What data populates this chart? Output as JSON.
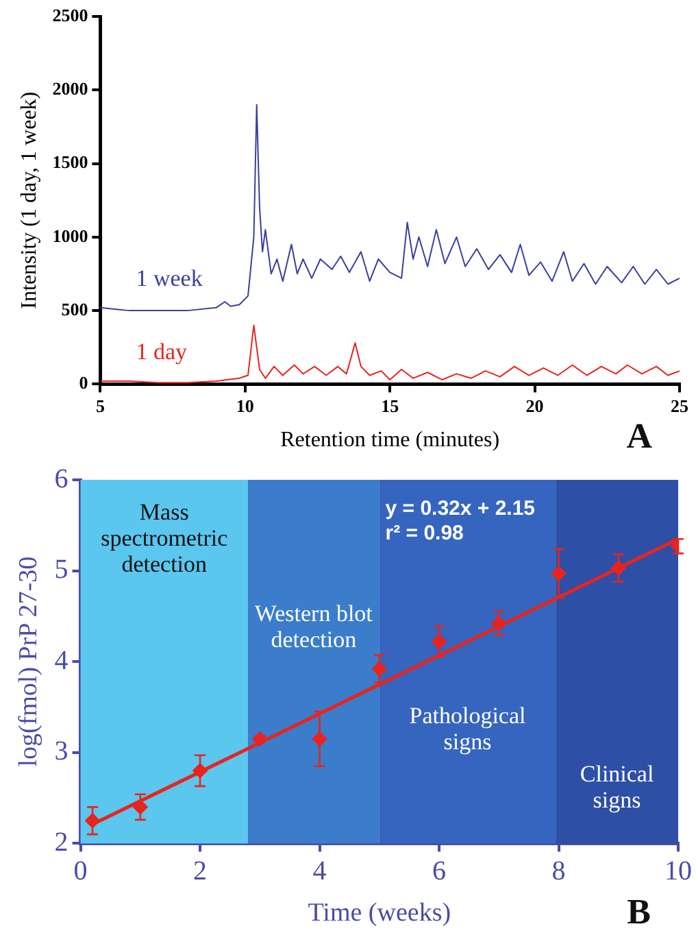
{
  "chart_data": [
    {
      "type": "line",
      "xlabel": "Retention time (minutes)",
      "ylabel": "Intensity (1 day, 1 week)",
      "xlim": [
        5,
        25
      ],
      "ylim": [
        0,
        2500
      ],
      "xticks": [
        5,
        10,
        15,
        20,
        25
      ],
      "yticks": [
        0,
        500,
        1000,
        1500,
        2000,
        2500
      ],
      "grid": false,
      "legend": false,
      "annotations": [
        "A"
      ],
      "series": [
        {
          "name": "1 week",
          "color": "#3a3f9e",
          "x": [
            5,
            5.5,
            6,
            7,
            8,
            9,
            9.3,
            9.5,
            9.8,
            10.1,
            10.3,
            10.4,
            10.5,
            10.6,
            10.7,
            10.9,
            11.1,
            11.3,
            11.6,
            11.8,
            12,
            12.3,
            12.6,
            13,
            13.3,
            13.6,
            14,
            14.3,
            14.6,
            15,
            15.4,
            15.6,
            15.8,
            16,
            16.3,
            16.6,
            16.9,
            17.3,
            17.6,
            18,
            18.4,
            18.8,
            19.2,
            19.5,
            19.8,
            20.2,
            20.6,
            21,
            21.3,
            21.7,
            22.1,
            22.5,
            23,
            23.4,
            23.8,
            24.2,
            24.6,
            25
          ],
          "values": [
            520,
            510,
            500,
            500,
            500,
            520,
            560,
            530,
            540,
            600,
            1000,
            1900,
            1200,
            900,
            1050,
            750,
            850,
            700,
            950,
            750,
            850,
            720,
            850,
            780,
            870,
            760,
            900,
            700,
            850,
            760,
            720,
            1100,
            850,
            1000,
            800,
            1050,
            820,
            1000,
            800,
            920,
            780,
            880,
            760,
            950,
            740,
            830,
            700,
            900,
            700,
            820,
            680,
            800,
            690,
            800,
            680,
            780,
            680,
            720
          ]
        },
        {
          "name": "1 day",
          "color": "#e8241f",
          "x": [
            5,
            6,
            7,
            8,
            9,
            9.8,
            10.1,
            10.3,
            10.5,
            10.7,
            11,
            11.3,
            11.7,
            12,
            12.4,
            12.8,
            13.2,
            13.5,
            13.8,
            14,
            14.3,
            14.7,
            15,
            15.4,
            15.8,
            16.3,
            16.8,
            17.3,
            17.8,
            18.3,
            18.8,
            19.3,
            19.8,
            20.3,
            20.8,
            21.3,
            21.8,
            22.3,
            22.8,
            23.2,
            23.7,
            24.2,
            24.6,
            25
          ],
          "values": [
            20,
            20,
            10,
            10,
            20,
            40,
            60,
            400,
            100,
            40,
            120,
            60,
            130,
            70,
            120,
            60,
            120,
            70,
            280,
            120,
            60,
            90,
            30,
            100,
            40,
            80,
            30,
            70,
            40,
            90,
            50,
            120,
            60,
            110,
            60,
            130,
            60,
            120,
            70,
            130,
            70,
            120,
            60,
            90
          ]
        }
      ]
    },
    {
      "type": "scatter",
      "xlabel": "Time (weeks)",
      "ylabel": "log(fmol) PrP 27-30",
      "xlim": [
        0,
        10
      ],
      "ylim": [
        2,
        6
      ],
      "xticks": [
        0,
        2,
        4,
        6,
        8,
        10
      ],
      "yticks": [
        2,
        3,
        4,
        5,
        6
      ],
      "grid": false,
      "legend": false,
      "marker": "diamond",
      "annotations": [
        "y = 0.32x + 2.15",
        "r² = 0.98",
        "B"
      ],
      "bands": [
        {
          "axis": "x",
          "from": 0,
          "to": 2.8,
          "label": "Mass spectrometric detection",
          "color": "#5bc6ee"
        },
        {
          "axis": "x",
          "from": 2.8,
          "to": 5,
          "label": "Western blot detection",
          "color": "#3b7ccb"
        },
        {
          "axis": "x",
          "from": 5,
          "to": 7.95,
          "label": "Pathological signs",
          "color": "#3565bf"
        },
        {
          "axis": "x",
          "from": 7.95,
          "to": 10,
          "label": "Clinical signs",
          "color": "#2d4fa6"
        }
      ],
      "series": [
        {
          "color": "#e8241f",
          "x": [
            0.2,
            1,
            2,
            3,
            4,
            5,
            6,
            7,
            8,
            9,
            10
          ],
          "values": [
            2.25,
            2.4,
            2.8,
            3.15,
            3.15,
            3.92,
            4.22,
            4.42,
            4.97,
            5.03,
            5.27
          ],
          "errors": [
            0.15,
            0.14,
            0.17,
            0.03,
            0.3,
            0.15,
            0.17,
            0.13,
            0.27,
            0.15,
            0.08
          ]
        },
        {
          "type": "line",
          "color": "#e8241f",
          "marker": "none",
          "x": [
            0.2,
            10
          ],
          "values": [
            2.21,
            5.35
          ]
        }
      ]
    }
  ]
}
